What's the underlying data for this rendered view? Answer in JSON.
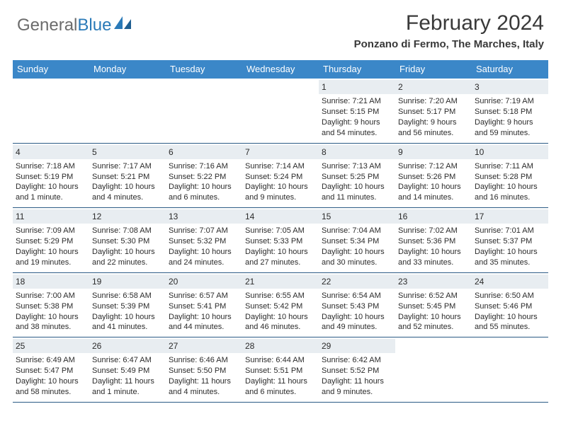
{
  "logo": {
    "text_gray": "General",
    "text_blue": "Blue"
  },
  "title": "February 2024",
  "location": "Ponzano di Fermo, The Marches, Italy",
  "colors": {
    "header_bg": "#3b87c8",
    "header_text": "#ffffff",
    "daynum_bg": "#e8edf1",
    "body_text": "#2b2b2b",
    "rule": "#2a5a85",
    "logo_gray": "#6b6b6b",
    "logo_blue": "#2a7ab8",
    "title_color": "#393939"
  },
  "weekdays": [
    "Sunday",
    "Monday",
    "Tuesday",
    "Wednesday",
    "Thursday",
    "Friday",
    "Saturday"
  ],
  "weeks": [
    [
      null,
      null,
      null,
      null,
      {
        "n": "1",
        "sr": "Sunrise: 7:21 AM",
        "ss": "Sunset: 5:15 PM",
        "d1": "Daylight: 9 hours",
        "d2": "and 54 minutes."
      },
      {
        "n": "2",
        "sr": "Sunrise: 7:20 AM",
        "ss": "Sunset: 5:17 PM",
        "d1": "Daylight: 9 hours",
        "d2": "and 56 minutes."
      },
      {
        "n": "3",
        "sr": "Sunrise: 7:19 AM",
        "ss": "Sunset: 5:18 PM",
        "d1": "Daylight: 9 hours",
        "d2": "and 59 minutes."
      }
    ],
    [
      {
        "n": "4",
        "sr": "Sunrise: 7:18 AM",
        "ss": "Sunset: 5:19 PM",
        "d1": "Daylight: 10 hours",
        "d2": "and 1 minute."
      },
      {
        "n": "5",
        "sr": "Sunrise: 7:17 AM",
        "ss": "Sunset: 5:21 PM",
        "d1": "Daylight: 10 hours",
        "d2": "and 4 minutes."
      },
      {
        "n": "6",
        "sr": "Sunrise: 7:16 AM",
        "ss": "Sunset: 5:22 PM",
        "d1": "Daylight: 10 hours",
        "d2": "and 6 minutes."
      },
      {
        "n": "7",
        "sr": "Sunrise: 7:14 AM",
        "ss": "Sunset: 5:24 PM",
        "d1": "Daylight: 10 hours",
        "d2": "and 9 minutes."
      },
      {
        "n": "8",
        "sr": "Sunrise: 7:13 AM",
        "ss": "Sunset: 5:25 PM",
        "d1": "Daylight: 10 hours",
        "d2": "and 11 minutes."
      },
      {
        "n": "9",
        "sr": "Sunrise: 7:12 AM",
        "ss": "Sunset: 5:26 PM",
        "d1": "Daylight: 10 hours",
        "d2": "and 14 minutes."
      },
      {
        "n": "10",
        "sr": "Sunrise: 7:11 AM",
        "ss": "Sunset: 5:28 PM",
        "d1": "Daylight: 10 hours",
        "d2": "and 16 minutes."
      }
    ],
    [
      {
        "n": "11",
        "sr": "Sunrise: 7:09 AM",
        "ss": "Sunset: 5:29 PM",
        "d1": "Daylight: 10 hours",
        "d2": "and 19 minutes."
      },
      {
        "n": "12",
        "sr": "Sunrise: 7:08 AM",
        "ss": "Sunset: 5:30 PM",
        "d1": "Daylight: 10 hours",
        "d2": "and 22 minutes."
      },
      {
        "n": "13",
        "sr": "Sunrise: 7:07 AM",
        "ss": "Sunset: 5:32 PM",
        "d1": "Daylight: 10 hours",
        "d2": "and 24 minutes."
      },
      {
        "n": "14",
        "sr": "Sunrise: 7:05 AM",
        "ss": "Sunset: 5:33 PM",
        "d1": "Daylight: 10 hours",
        "d2": "and 27 minutes."
      },
      {
        "n": "15",
        "sr": "Sunrise: 7:04 AM",
        "ss": "Sunset: 5:34 PM",
        "d1": "Daylight: 10 hours",
        "d2": "and 30 minutes."
      },
      {
        "n": "16",
        "sr": "Sunrise: 7:02 AM",
        "ss": "Sunset: 5:36 PM",
        "d1": "Daylight: 10 hours",
        "d2": "and 33 minutes."
      },
      {
        "n": "17",
        "sr": "Sunrise: 7:01 AM",
        "ss": "Sunset: 5:37 PM",
        "d1": "Daylight: 10 hours",
        "d2": "and 35 minutes."
      }
    ],
    [
      {
        "n": "18",
        "sr": "Sunrise: 7:00 AM",
        "ss": "Sunset: 5:38 PM",
        "d1": "Daylight: 10 hours",
        "d2": "and 38 minutes."
      },
      {
        "n": "19",
        "sr": "Sunrise: 6:58 AM",
        "ss": "Sunset: 5:39 PM",
        "d1": "Daylight: 10 hours",
        "d2": "and 41 minutes."
      },
      {
        "n": "20",
        "sr": "Sunrise: 6:57 AM",
        "ss": "Sunset: 5:41 PM",
        "d1": "Daylight: 10 hours",
        "d2": "and 44 minutes."
      },
      {
        "n": "21",
        "sr": "Sunrise: 6:55 AM",
        "ss": "Sunset: 5:42 PM",
        "d1": "Daylight: 10 hours",
        "d2": "and 46 minutes."
      },
      {
        "n": "22",
        "sr": "Sunrise: 6:54 AM",
        "ss": "Sunset: 5:43 PM",
        "d1": "Daylight: 10 hours",
        "d2": "and 49 minutes."
      },
      {
        "n": "23",
        "sr": "Sunrise: 6:52 AM",
        "ss": "Sunset: 5:45 PM",
        "d1": "Daylight: 10 hours",
        "d2": "and 52 minutes."
      },
      {
        "n": "24",
        "sr": "Sunrise: 6:50 AM",
        "ss": "Sunset: 5:46 PM",
        "d1": "Daylight: 10 hours",
        "d2": "and 55 minutes."
      }
    ],
    [
      {
        "n": "25",
        "sr": "Sunrise: 6:49 AM",
        "ss": "Sunset: 5:47 PM",
        "d1": "Daylight: 10 hours",
        "d2": "and 58 minutes."
      },
      {
        "n": "26",
        "sr": "Sunrise: 6:47 AM",
        "ss": "Sunset: 5:49 PM",
        "d1": "Daylight: 11 hours",
        "d2": "and 1 minute."
      },
      {
        "n": "27",
        "sr": "Sunrise: 6:46 AM",
        "ss": "Sunset: 5:50 PM",
        "d1": "Daylight: 11 hours",
        "d2": "and 4 minutes."
      },
      {
        "n": "28",
        "sr": "Sunrise: 6:44 AM",
        "ss": "Sunset: 5:51 PM",
        "d1": "Daylight: 11 hours",
        "d2": "and 6 minutes."
      },
      {
        "n": "29",
        "sr": "Sunrise: 6:42 AM",
        "ss": "Sunset: 5:52 PM",
        "d1": "Daylight: 11 hours",
        "d2": "and 9 minutes."
      },
      null,
      null
    ]
  ]
}
